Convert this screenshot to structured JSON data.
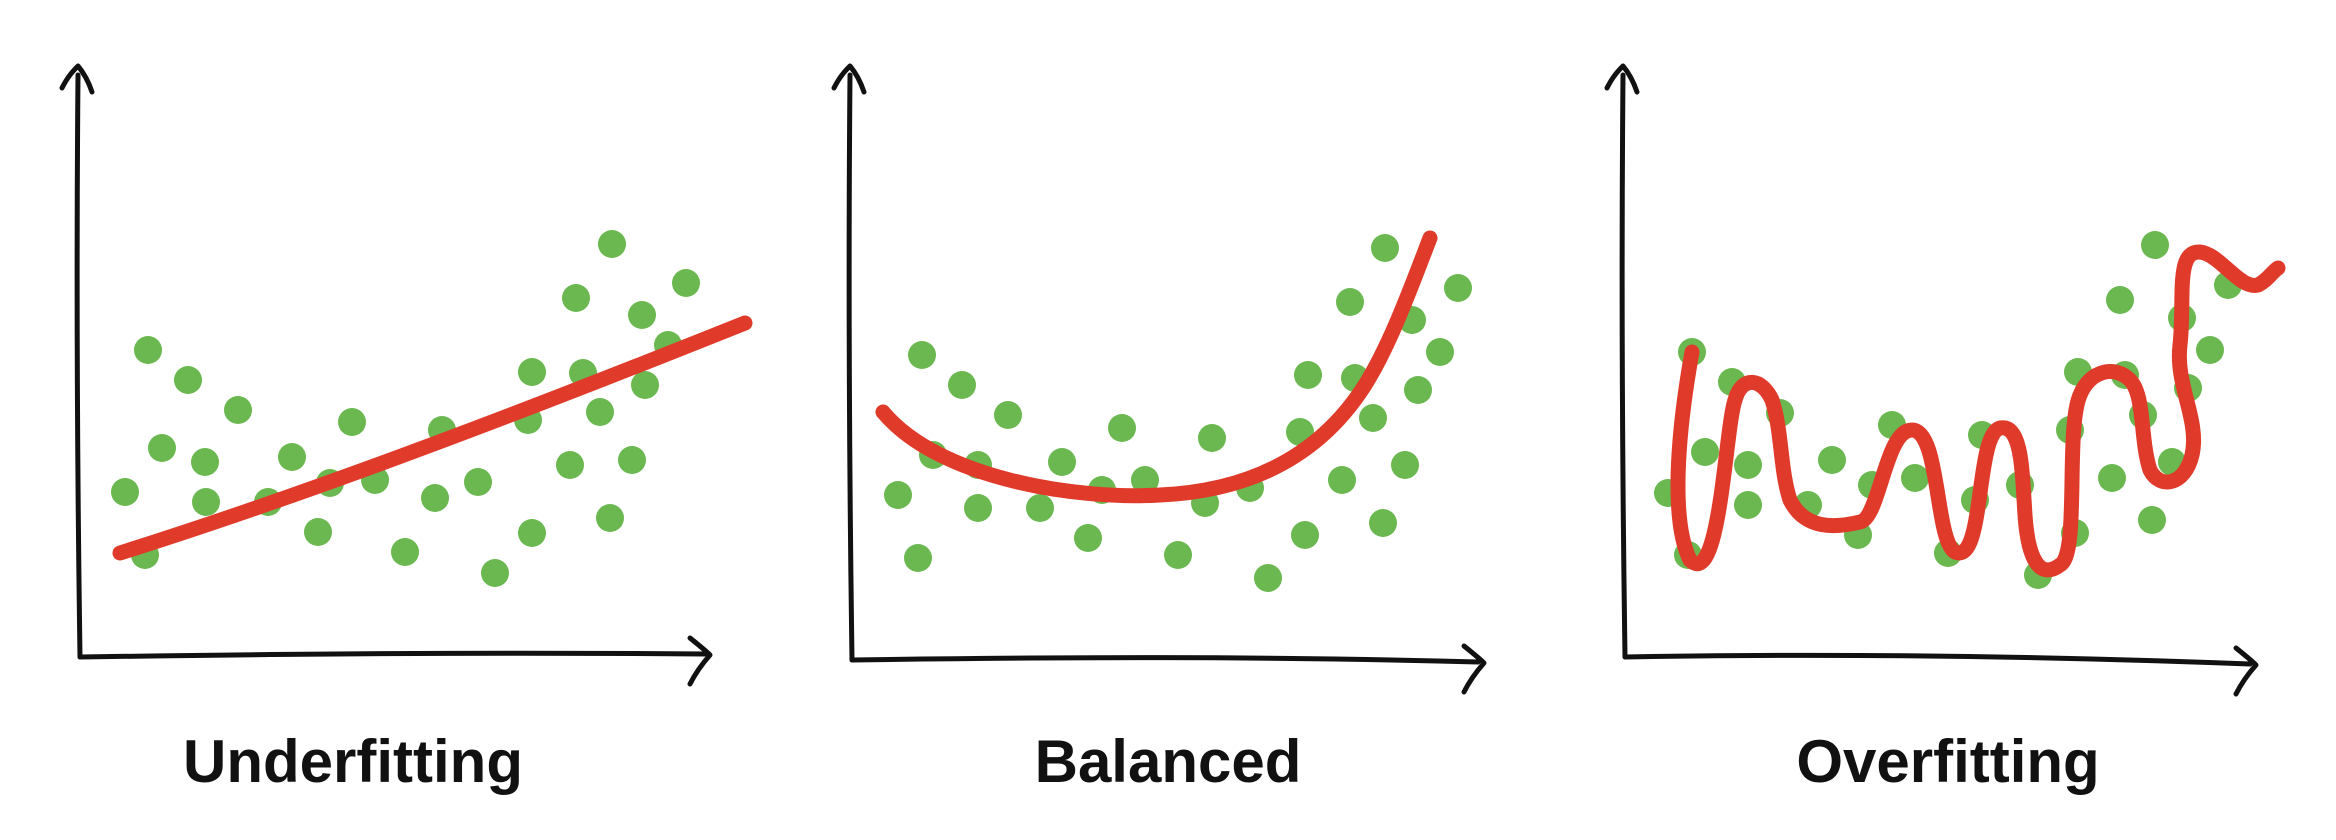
{
  "colors": {
    "points": "#6ab84f",
    "curve": "#e03a2b",
    "axes": "#111111"
  },
  "panels": [
    {
      "id": "underfitting",
      "title": "Underfitting"
    },
    {
      "id": "balanced",
      "title": "Balanced"
    },
    {
      "id": "overfitting",
      "title": "Overfitting"
    }
  ]
}
